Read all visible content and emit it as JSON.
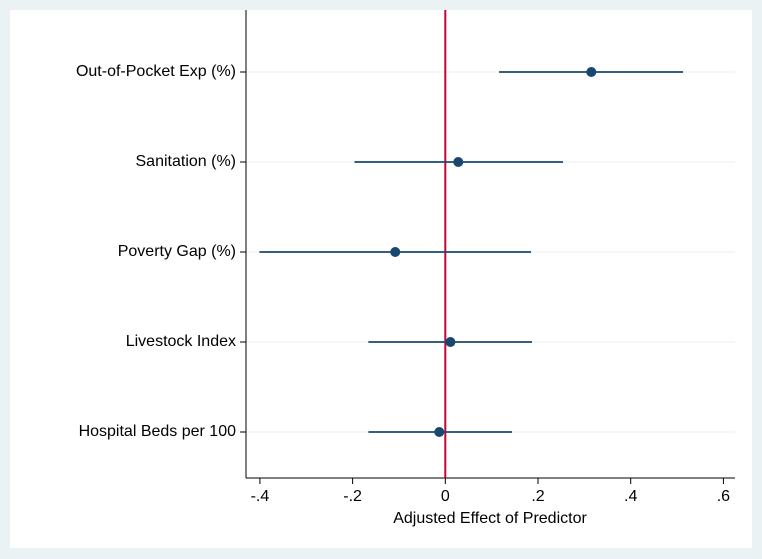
{
  "chart_data": {
    "type": "coefplot",
    "xlabel": "Adjusted Effect of Predictor",
    "categories": [
      "Out-of-Pocket Exp (%)",
      "Sanitation (%)",
      "Poverty Gap (%)",
      "Livestock Index",
      "Hospital Beds per 100"
    ],
    "values": [
      0.315,
      0.028,
      -0.108,
      0.011,
      -0.013
    ],
    "lower": [
      0.116,
      -0.196,
      -0.401,
      -0.166,
      -0.166
    ],
    "upper": [
      0.513,
      0.254,
      0.185,
      0.187,
      0.144
    ],
    "color": "#1a476f",
    "refline": 0,
    "refline_color": "#c10534",
    "xlim": [
      -0.43,
      0.625
    ],
    "xticks": [
      {
        "value": -0.4,
        "label": "-.4"
      },
      {
        "value": -0.2,
        "label": "-.2"
      },
      0,
      {
        "value": 0.2,
        "label": ".2"
      },
      {
        "value": 0.4,
        "label": ".4"
      },
      {
        "value": 0.6,
        "label": ".6"
      }
    ],
    "grid": true
  }
}
